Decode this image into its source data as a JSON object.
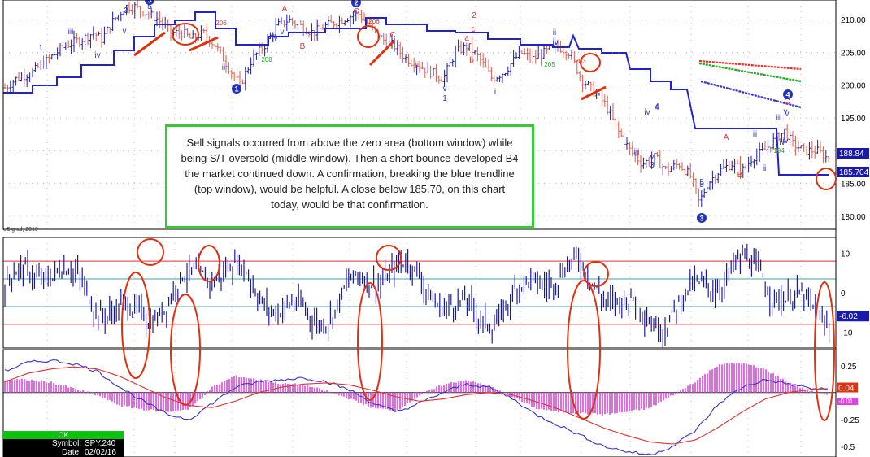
{
  "annotation": {
    "text": "Sell signals occurred from above the zero area (bottom window) while being S/T oversold (middle window).  Then a short bounce developed B4 the market continued down.  A confirmation, breaking the blue trendline (top window), would be helpful. A close below 185.70, on this chart today, would be that confirmation."
  },
  "watermark": "eSignal, 2010",
  "status": {
    "ok": "OK",
    "symbol_label": "Symbol:",
    "symbol": "SPY,240",
    "date_label": "Date:",
    "date": "02/02/16"
  },
  "colors": {
    "up_bar": "#1a1aaa",
    "down_bar": "#e05a4a",
    "trendline": "#2222cc",
    "circle": "#e03010",
    "annotation_border": "#33cc33",
    "band": "#e03030",
    "zero_band": "#4aa0a0",
    "histogram": "#dd44dd",
    "macd_blue": "#3333cc",
    "macd_red": "#e03030",
    "price_tag_1": "#1a1aaa",
    "price_tag_2": "#1a1aaa",
    "osc_tag": "#1a1aaa",
    "macd_tag": "#e03010"
  },
  "chart_data": [
    {
      "type": "bar",
      "panel": "price",
      "ylim": [
        178,
        213
      ],
      "y_ticks": [
        "210.00",
        "205.00",
        "200.00",
        "195.00",
        "190.00",
        "185.00",
        "180.00"
      ],
      "last_values": [
        "188.84",
        "185.704"
      ],
      "path_points": [
        [
          0,
          199
        ],
        [
          20,
          201
        ],
        [
          40,
          202
        ],
        [
          60,
          204
        ],
        [
          80,
          206
        ],
        [
          100,
          207
        ],
        [
          115,
          208
        ],
        [
          125,
          207
        ],
        [
          140,
          210
        ],
        [
          155,
          212
        ],
        [
          165,
          212
        ],
        [
          180,
          211
        ],
        [
          195,
          210
        ],
        [
          210,
          208
        ],
        [
          225,
          208
        ],
        [
          235,
          207
        ],
        [
          250,
          208
        ],
        [
          265,
          206
        ],
        [
          275,
          204
        ],
        [
          285,
          202
        ],
        [
          295,
          200
        ],
        [
          310,
          204
        ],
        [
          325,
          206
        ],
        [
          340,
          209
        ],
        [
          355,
          210
        ],
        [
          370,
          209
        ],
        [
          385,
          208
        ],
        [
          400,
          209
        ],
        [
          420,
          210
        ],
        [
          440,
          211
        ],
        [
          455,
          209
        ],
        [
          470,
          207
        ],
        [
          485,
          206
        ],
        [
          500,
          204
        ],
        [
          515,
          203
        ],
        [
          530,
          202
        ],
        [
          545,
          201
        ],
        [
          560,
          205
        ],
        [
          575,
          206
        ],
        [
          590,
          204
        ],
        [
          605,
          201
        ],
        [
          620,
          202
        ],
        [
          640,
          205
        ],
        [
          655,
          204
        ],
        [
          670,
          205
        ],
        [
          685,
          206
        ],
        [
          700,
          205
        ],
        [
          715,
          201
        ],
        [
          730,
          199
        ],
        [
          745,
          197
        ],
        [
          760,
          193
        ],
        [
          775,
          190
        ],
        [
          790,
          188
        ],
        [
          805,
          189
        ],
        [
          820,
          187
        ],
        [
          835,
          188
        ],
        [
          850,
          186
        ],
        [
          860,
          182
        ],
        [
          870,
          185
        ],
        [
          885,
          187
        ],
        [
          900,
          188
        ],
        [
          915,
          187
        ],
        [
          925,
          189
        ],
        [
          940,
          190
        ],
        [
          955,
          192
        ],
        [
          965,
          193
        ],
        [
          975,
          191
        ],
        [
          990,
          190
        ],
        [
          1005,
          190
        ],
        [
          1015,
          189
        ]
      ],
      "wave_labels": [
        "3",
        "5",
        "iii",
        "v",
        "1",
        "iv",
        "ii",
        "iv",
        "v",
        "A",
        "C",
        "B",
        "C",
        "2",
        "iii",
        "a",
        "b",
        "c",
        "v",
        "1",
        "i",
        "ii",
        "iv",
        "iii",
        "v",
        "4",
        "A",
        "B",
        "iv",
        "5",
        "i",
        "ii",
        "v",
        "iv",
        "3",
        "5",
        "4",
        "iii",
        "iv",
        "v",
        "i",
        "ii",
        "C"
      ],
      "circled_labels": [
        "5",
        "2",
        "1",
        "4",
        "3"
      ],
      "pivot_labels": [
        "206",
        "208",
        "206",
        "205",
        "203",
        "194"
      ]
    },
    {
      "type": "bar",
      "panel": "oscillator",
      "ylim": [
        -14,
        14
      ],
      "y_ticks": [
        "10",
        "0",
        "-10"
      ],
      "bands": [
        8,
        3.5,
        -3.5,
        -8
      ],
      "last_value": "-6.02"
    },
    {
      "type": "line",
      "panel": "macd",
      "ylim": [
        -0.6,
        0.4
      ],
      "y_ticks": [
        "0.25",
        "-0.25",
        "-0.5"
      ],
      "series": [
        {
          "name": "",
          "role": "fast",
          "color": "#3333cc",
          "values": [
            0.2,
            0.28,
            0.3,
            0.27,
            0.2,
            0.05,
            -0.08,
            -0.2,
            -0.25,
            -0.1,
            0.05,
            0.1,
            0.12,
            0.14,
            0.1,
            0.02,
            -0.1,
            -0.18,
            -0.1,
            0.0,
            0.08,
            0.05,
            -0.05,
            -0.2,
            -0.3,
            -0.4,
            -0.5,
            -0.55,
            -0.58,
            -0.5,
            -0.35,
            -0.1,
            0.05,
            0.12,
            0.08,
            0.04,
            0.02
          ]
        },
        {
          "name": "",
          "role": "slow",
          "color": "#e03030",
          "values": [
            0.1,
            0.18,
            0.22,
            0.24,
            0.22,
            0.15,
            0.05,
            -0.05,
            -0.12,
            -0.14,
            -0.08,
            0.0,
            0.05,
            0.08,
            0.09,
            0.07,
            0.02,
            -0.04,
            -0.08,
            -0.06,
            -0.02,
            0.0,
            -0.02,
            -0.08,
            -0.15,
            -0.24,
            -0.33,
            -0.4,
            -0.46,
            -0.48,
            -0.44,
            -0.32,
            -0.18,
            -0.06,
            0.0,
            0.03,
            0.04
          ]
        }
      ],
      "last_values": [
        "0.04",
        "-0.01"
      ]
    }
  ]
}
